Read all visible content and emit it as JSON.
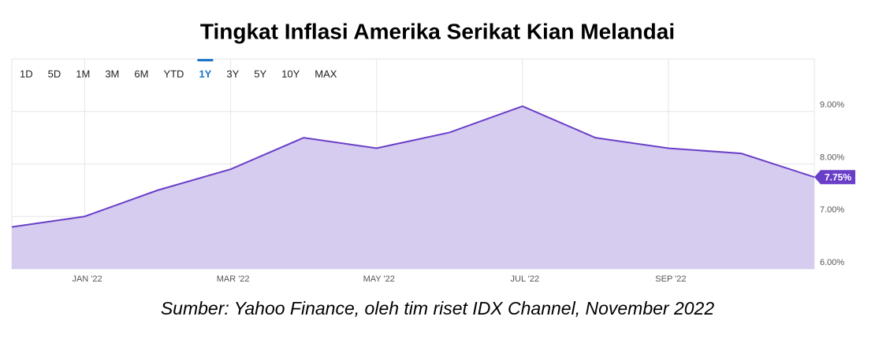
{
  "chart_data": {
    "type": "area",
    "title": "Tingkat Inflasi Amerika Serikat Kian Melandai",
    "source": "Sumber: Yahoo Finance, oleh tim riset IDX Channel, November 2022",
    "range_buttons": [
      "1D",
      "5D",
      "1M",
      "3M",
      "6M",
      "YTD",
      "1Y",
      "3Y",
      "5Y",
      "10Y",
      "MAX"
    ],
    "selected_range": 6,
    "categories": [
      null,
      "JAN '22",
      null,
      "MAR '22",
      null,
      "MAY '22",
      null,
      "JUL '22",
      null,
      "SEP '22",
      null,
      null
    ],
    "values": [
      6.8,
      7.0,
      7.5,
      7.9,
      8.5,
      8.3,
      8.6,
      9.1,
      8.5,
      8.3,
      8.2,
      7.75
    ],
    "value_labels": [
      null,
      null,
      null,
      null,
      null,
      null,
      null,
      null,
      null,
      null,
      null,
      "7.75%"
    ],
    "color": "#6a3fc8",
    "fill": "#d6ccf0",
    "ylim": [
      6,
      10
    ],
    "yticks": [
      {
        "value": 6,
        "label": "6.00%"
      },
      {
        "value": 7,
        "label": "7.00%"
      },
      {
        "value": 8,
        "label": "8.00%"
      },
      {
        "value": 9,
        "label": "9.00%"
      }
    ],
    "grid": true
  }
}
